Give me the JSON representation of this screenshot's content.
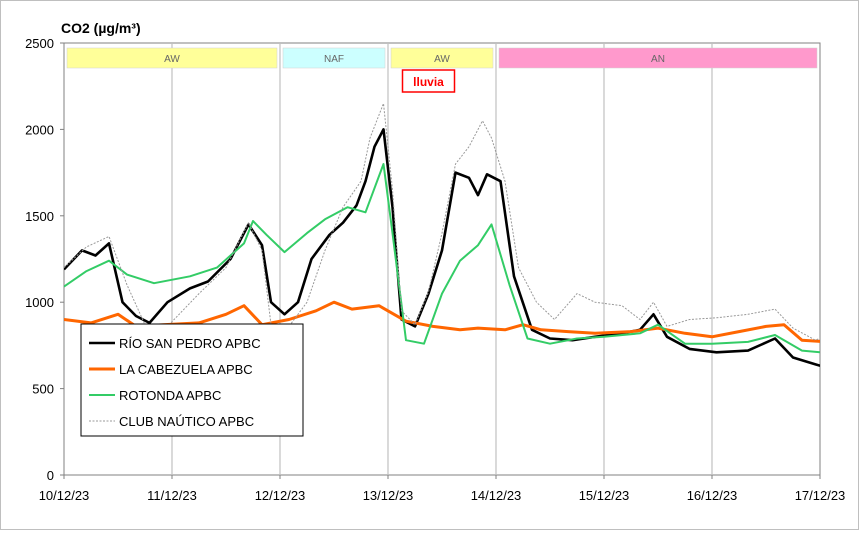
{
  "chart_data": {
    "type": "line",
    "title": "CO2 (µg/m³)",
    "xlabel": "",
    "ylabel": "",
    "x_ticks": [
      "10/12/23",
      "11/12/23",
      "12/12/23",
      "13/12/23",
      "14/12/23",
      "15/12/23",
      "16/12/23",
      "17/12/23"
    ],
    "xlim": [
      "10/12/23 00:00",
      "17/12/23 00:00"
    ],
    "ylim": [
      0,
      2500
    ],
    "y_ticks": [
      0,
      500,
      1000,
      1500,
      2000,
      2500
    ],
    "grid": "vertical lines at each day",
    "legend": "lower-left",
    "periods": [
      {
        "label": "AW",
        "start": "10/12/23 00:00",
        "end": "12/12/23 00:00",
        "color": "#ffff99"
      },
      {
        "label": "NAF",
        "start": "12/12/23 00:00",
        "end": "13/12/23 00:00",
        "color": "#ccffff"
      },
      {
        "label": "AW",
        "start": "13/12/23 00:00",
        "end": "14/12/23 00:00",
        "color": "#ffff99"
      },
      {
        "label": "AN",
        "start": "14/12/23 00:00",
        "end": "17/12/23 00:00",
        "color": "#ff99cc"
      }
    ],
    "annotation": {
      "text": "lluvia",
      "x": "13/12/23 09:00",
      "color": "#ff0000"
    },
    "series": [
      {
        "name": "RÍO SAN PEDRO APBC",
        "color": "#000000",
        "points": [
          [
            "10/12/23 00:00",
            1190
          ],
          [
            "10/12/23 04:00",
            1300
          ],
          [
            "10/12/23 07:00",
            1270
          ],
          [
            "10/12/23 10:00",
            1340
          ],
          [
            "10/12/23 13:00",
            1000
          ],
          [
            "10/12/23 16:00",
            920
          ],
          [
            "10/12/23 19:00",
            880
          ],
          [
            "10/12/23 23:00",
            1000
          ],
          [
            "11/12/23 04:00",
            1080
          ],
          [
            "11/12/23 08:00",
            1120
          ],
          [
            "11/12/23 13:00",
            1250
          ],
          [
            "11/12/23 17:00",
            1450
          ],
          [
            "11/12/23 20:00",
            1330
          ],
          [
            "11/12/23 22:00",
            1000
          ],
          [
            "12/12/23 01:00",
            930
          ],
          [
            "12/12/23 04:00",
            1000
          ],
          [
            "12/12/23 07:00",
            1250
          ],
          [
            "12/12/23 11:00",
            1390
          ],
          [
            "12/12/23 14:00",
            1460
          ],
          [
            "12/12/23 17:00",
            1560
          ],
          [
            "12/12/23 19:00",
            1700
          ],
          [
            "12/12/23 21:00",
            1900
          ],
          [
            "12/12/23 23:00",
            2000
          ],
          [
            "13/12/23 01:00",
            1550
          ],
          [
            "13/12/23 03:00",
            900
          ],
          [
            "13/12/23 06:00",
            860
          ],
          [
            "13/12/23 09:00",
            1050
          ],
          [
            "13/12/23 12:00",
            1300
          ],
          [
            "13/12/23 15:00",
            1750
          ],
          [
            "13/12/23 18:00",
            1720
          ],
          [
            "13/12/23 20:00",
            1620
          ],
          [
            "13/12/23 22:00",
            1740
          ],
          [
            "14/12/23 01:00",
            1700
          ],
          [
            "14/12/23 04:00",
            1150
          ],
          [
            "14/12/23 08:00",
            840
          ],
          [
            "14/12/23 12:00",
            790
          ],
          [
            "14/12/23 17:00",
            780
          ],
          [
            "14/12/23 22:00",
            800
          ],
          [
            "15/12/23 04:00",
            820
          ],
          [
            "15/12/23 08:00",
            840
          ],
          [
            "15/12/23 11:00",
            930
          ],
          [
            "15/12/23 14:00",
            800
          ],
          [
            "15/12/23 19:00",
            730
          ],
          [
            "16/12/23 01:00",
            710
          ],
          [
            "16/12/23 08:00",
            720
          ],
          [
            "16/12/23 14:00",
            790
          ],
          [
            "16/12/23 18:00",
            680
          ],
          [
            "16/12/23 23:00",
            640
          ],
          [
            "17/12/23 03:00",
            610
          ],
          [
            "17/12/23 09:00",
            630
          ],
          [
            "17/12/23 14:00",
            650
          ],
          [
            "17/12/23 18:00",
            580
          ],
          [
            "17/12/23 20:00",
            720
          ],
          [
            "17/12/23 22:00",
            730
          ],
          [
            "18/12/23 01:00",
            720
          ]
        ]
      },
      {
        "name": "LA CABEZUELA APBC",
        "color": "#ff6600",
        "points": [
          [
            "10/12/23 00:00",
            900
          ],
          [
            "10/12/23 06:00",
            880
          ],
          [
            "10/12/23 12:00",
            930
          ],
          [
            "10/12/23 16:00",
            860
          ],
          [
            "10/12/23 22:00",
            870
          ],
          [
            "11/12/23 06:00",
            880
          ],
          [
            "11/12/23 12:00",
            930
          ],
          [
            "11/12/23 16:00",
            980
          ],
          [
            "11/12/23 20:00",
            870
          ],
          [
            "12/12/23 02:00",
            900
          ],
          [
            "12/12/23 08:00",
            950
          ],
          [
            "12/12/23 12:00",
            1000
          ],
          [
            "12/12/23 16:00",
            960
          ],
          [
            "12/12/23 22:00",
            980
          ],
          [
            "13/12/23 04:00",
            890
          ],
          [
            "13/12/23 10:00",
            860
          ],
          [
            "13/12/23 16:00",
            840
          ],
          [
            "13/12/23 20:00",
            850
          ],
          [
            "14/12/23 02:00",
            840
          ],
          [
            "14/12/23 06:00",
            870
          ],
          [
            "14/12/23 10:00",
            840
          ],
          [
            "14/12/23 16:00",
            830
          ],
          [
            "14/12/23 22:00",
            820
          ],
          [
            "15/12/23 06:00",
            830
          ],
          [
            "15/12/23 12:00",
            850
          ],
          [
            "15/12/23 18:00",
            820
          ],
          [
            "16/12/23 00:00",
            800
          ],
          [
            "16/12/23 06:00",
            830
          ],
          [
            "16/12/23 12:00",
            860
          ],
          [
            "16/12/23 16:00",
            870
          ],
          [
            "16/12/23 20:00",
            780
          ],
          [
            "17/12/23 02:00",
            770
          ],
          [
            "17/12/23 08:00",
            820
          ],
          [
            "17/12/23 14:00",
            830
          ],
          [
            "17/12/23 18:00",
            850
          ],
          [
            "17/12/23 22:00",
            760
          ],
          [
            "18/12/23 04:00",
            780
          ],
          [
            "18/12/23 10:00",
            800
          ],
          [
            "18/12/23 16:00",
            840
          ]
        ]
      },
      {
        "name": "ROTONDA APBC",
        "color": "#33cc66",
        "points": [
          [
            "10/12/23 00:00",
            1090
          ],
          [
            "10/12/23 05:00",
            1180
          ],
          [
            "10/12/23 10:00",
            1240
          ],
          [
            "10/12/23 14:00",
            1160
          ],
          [
            "10/12/23 20:00",
            1110
          ],
          [
            "11/12/23 04:00",
            1150
          ],
          [
            "11/12/23 10:00",
            1200
          ],
          [
            "11/12/23 16:00",
            1340
          ],
          [
            "11/12/23 18:00",
            1470
          ],
          [
            "11/12/23 21:00",
            1390
          ],
          [
            "12/12/23 01:00",
            1290
          ],
          [
            "12/12/23 06:00",
            1400
          ],
          [
            "12/12/23 10:00",
            1480
          ],
          [
            "12/12/23 15:00",
            1550
          ],
          [
            "12/12/23 19:00",
            1520
          ],
          [
            "12/12/23 23:00",
            1800
          ],
          [
            "13/12/23 01:00",
            1400
          ],
          [
            "13/12/23 04:00",
            780
          ],
          [
            "13/12/23 08:00",
            760
          ],
          [
            "13/12/23 12:00",
            1050
          ],
          [
            "13/12/23 16:00",
            1240
          ],
          [
            "13/12/23 20:00",
            1330
          ],
          [
            "13/12/23 23:00",
            1450
          ],
          [
            "14/12/23 03:00",
            1100
          ],
          [
            "14/12/23 07:00",
            790
          ],
          [
            "14/12/23 12:00",
            760
          ],
          [
            "14/12/23 18:00",
            790
          ],
          [
            "15/12/23 00:00",
            800
          ],
          [
            "15/12/23 08:00",
            820
          ],
          [
            "15/12/23 12:00",
            870
          ],
          [
            "15/12/23 18:00",
            760
          ],
          [
            "16/12/23 00:00",
            760
          ],
          [
            "16/12/23 08:00",
            770
          ],
          [
            "16/12/23 14:00",
            810
          ],
          [
            "16/12/23 20:00",
            720
          ],
          [
            "17/12/23 04:00",
            700
          ],
          [
            "17/12/23 10:00",
            710
          ],
          [
            "17/12/23 16:00",
            740
          ],
          [
            "17/12/23 20:00",
            680
          ],
          [
            "18/12/23 04:00",
            700
          ],
          [
            "18/12/23 12:00",
            760
          ],
          [
            "18/12/23 20:00",
            780
          ]
        ]
      },
      {
        "name": "CLUB NAÚTICO APBC",
        "color": "#999999",
        "points": [
          [
            "10/12/23 00:00",
            1200
          ],
          [
            "10/12/23 05:00",
            1320
          ],
          [
            "10/12/23 10:00",
            1380
          ],
          [
            "10/12/23 14:00",
            1100
          ],
          [
            "10/12/23 18:00",
            870
          ],
          [
            "10/12/23 23:00",
            860
          ],
          [
            "11/12/23 06:00",
            1050
          ],
          [
            "11/12/23 12:00",
            1200
          ],
          [
            "11/12/23 17:00",
            1460
          ],
          [
            "11/12/23 20:00",
            1300
          ],
          [
            "11/12/23 22:00",
            870
          ],
          [
            "12/12/23 02:00",
            860
          ],
          [
            "12/12/23 06:00",
            1000
          ],
          [
            "12/12/23 10:00",
            1300
          ],
          [
            "12/12/23 14:00",
            1550
          ],
          [
            "12/12/23 18:00",
            1700
          ],
          [
            "12/12/23 20:00",
            1950
          ],
          [
            "12/12/23 23:00",
            2150
          ],
          [
            "13/12/23 01:00",
            1650
          ],
          [
            "13/12/23 03:00",
            950
          ],
          [
            "13/12/23 06:00",
            870
          ],
          [
            "13/12/23 09:00",
            1060
          ],
          [
            "13/12/23 12:00",
            1400
          ],
          [
            "13/12/23 15:00",
            1800
          ],
          [
            "13/12/23 18:00",
            1900
          ],
          [
            "13/12/23 21:00",
            2050
          ],
          [
            "13/12/23 23:00",
            1950
          ],
          [
            "14/12/23 02:00",
            1700
          ],
          [
            "14/12/23 05:00",
            1200
          ],
          [
            "14/12/23 09:00",
            1000
          ],
          [
            "14/12/23 13:00",
            900
          ],
          [
            "14/12/23 18:00",
            1050
          ],
          [
            "14/12/23 22:00",
            1000
          ],
          [
            "15/12/23 04:00",
            980
          ],
          [
            "15/12/23 08:00",
            900
          ],
          [
            "15/12/23 11:00",
            1000
          ],
          [
            "15/12/23 14:00",
            860
          ],
          [
            "15/12/23 19:00",
            900
          ],
          [
            "16/12/23 01:00",
            910
          ],
          [
            "16/12/23 08:00",
            930
          ],
          [
            "16/12/23 14:00",
            960
          ],
          [
            "16/12/23 18:00",
            850
          ],
          [
            "16/12/23 23:00",
            780
          ],
          [
            "17/12/23 03:00",
            830
          ],
          [
            "17/12/23 09:00",
            840
          ],
          [
            "17/12/23 14:00",
            820
          ],
          [
            "17/12/23 18:00",
            720
          ],
          [
            "17/12/23 22:00",
            780
          ],
          [
            "18/12/23 04:00",
            840
          ],
          [
            "18/12/23 12:00",
            800
          ],
          [
            "18/12/23 20:00",
            860
          ]
        ]
      }
    ]
  }
}
